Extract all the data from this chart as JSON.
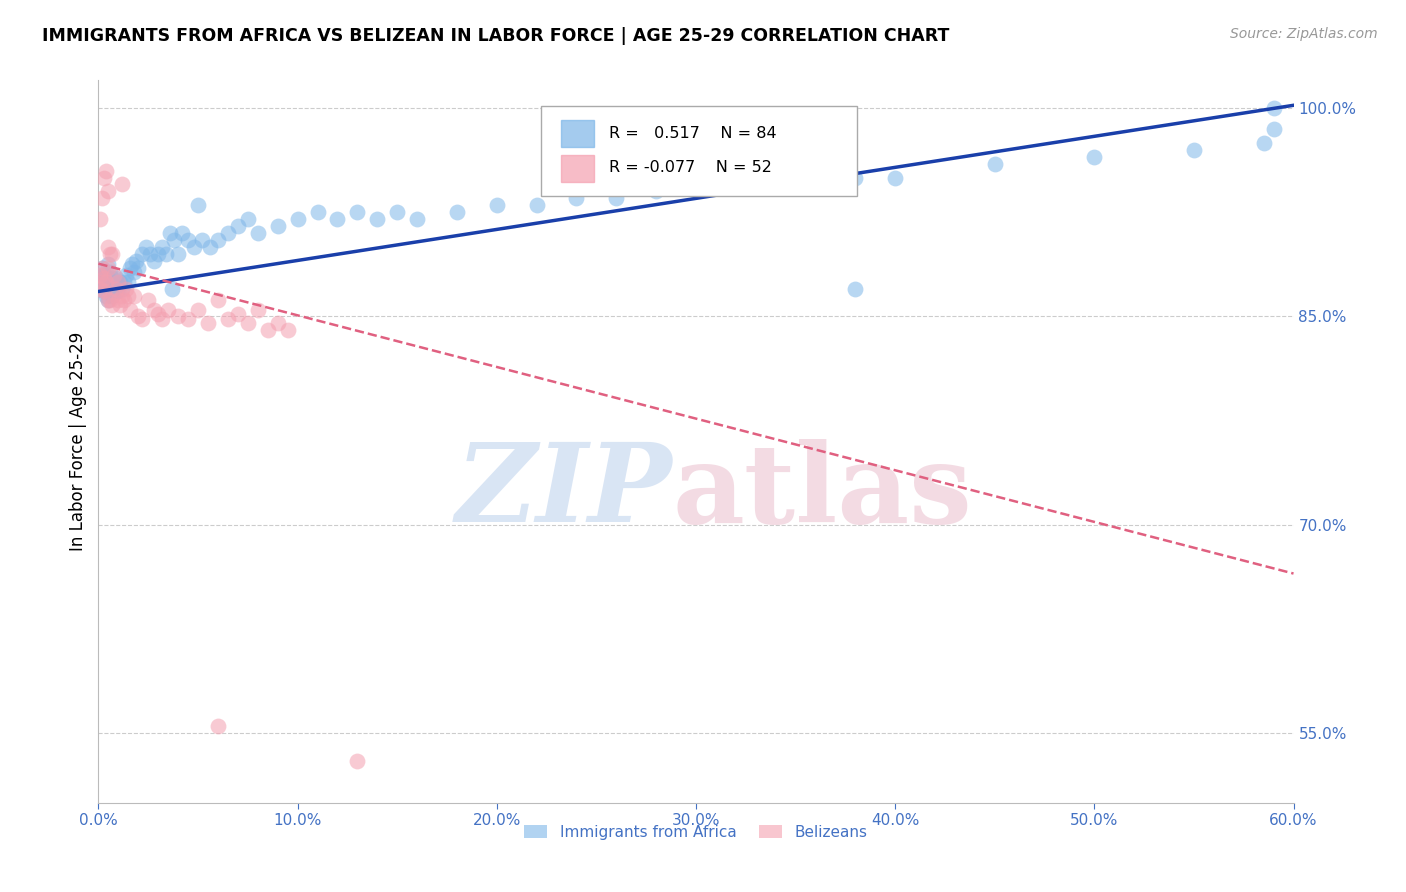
{
  "title": "IMMIGRANTS FROM AFRICA VS BELIZEAN IN LABOR FORCE | AGE 25-29 CORRELATION CHART",
  "source": "Source: ZipAtlas.com",
  "ylabel": "In Labor Force | Age 25-29",
  "xlim": [
    0.0,
    0.6
  ],
  "ylim": [
    0.5,
    1.02
  ],
  "xticks": [
    0.0,
    0.1,
    0.2,
    0.3,
    0.4,
    0.5,
    0.6
  ],
  "xticklabels": [
    "0.0%",
    "10.0%",
    "20.0%",
    "30.0%",
    "40.0%",
    "50.0%",
    "60.0%"
  ],
  "yticks_right": [
    0.55,
    0.7,
    0.85,
    1.0
  ],
  "ytick_labels_right": [
    "55.0%",
    "70.0%",
    "85.0%",
    "100.0%"
  ],
  "grid_color": "#cccccc",
  "axis_color": "#4472c4",
  "legend_R_blue": "0.517",
  "legend_N_blue": "84",
  "legend_R_pink": "-0.077",
  "legend_N_pink": "52",
  "blue_color": "#7EB6E8",
  "pink_color": "#F4A0B0",
  "trend_blue": "#1A3FAA",
  "trend_pink": "#E06080",
  "blue_trend_x": [
    0.0,
    0.6
  ],
  "blue_trend_y": [
    0.868,
    1.002
  ],
  "pink_trend_x": [
    0.0,
    0.6
  ],
  "pink_trend_y": [
    0.888,
    0.665
  ],
  "blue_x": [
    0.001,
    0.001,
    0.002,
    0.002,
    0.002,
    0.003,
    0.003,
    0.003,
    0.004,
    0.004,
    0.004,
    0.005,
    0.005,
    0.005,
    0.006,
    0.006,
    0.006,
    0.007,
    0.007,
    0.008,
    0.008,
    0.009,
    0.009,
    0.01,
    0.01,
    0.011,
    0.012,
    0.013,
    0.014,
    0.015,
    0.016,
    0.017,
    0.018,
    0.019,
    0.02,
    0.022,
    0.024,
    0.026,
    0.028,
    0.03,
    0.032,
    0.034,
    0.036,
    0.038,
    0.04,
    0.042,
    0.045,
    0.048,
    0.052,
    0.056,
    0.06,
    0.065,
    0.07,
    0.075,
    0.08,
    0.09,
    0.1,
    0.11,
    0.12,
    0.13,
    0.14,
    0.15,
    0.16,
    0.18,
    0.2,
    0.22,
    0.24,
    0.26,
    0.28,
    0.3,
    0.32,
    0.34,
    0.36,
    0.38,
    0.4,
    0.45,
    0.5,
    0.55,
    0.585,
    0.59,
    0.037,
    0.05,
    0.38,
    0.59
  ],
  "blue_y": [
    0.88,
    0.87,
    0.872,
    0.875,
    0.885,
    0.88,
    0.878,
    0.868,
    0.875,
    0.87,
    0.865,
    0.862,
    0.888,
    0.878,
    0.882,
    0.875,
    0.87,
    0.878,
    0.865,
    0.875,
    0.87,
    0.868,
    0.878,
    0.872,
    0.868,
    0.875,
    0.87,
    0.875,
    0.88,
    0.875,
    0.885,
    0.888,
    0.882,
    0.89,
    0.885,
    0.895,
    0.9,
    0.895,
    0.89,
    0.895,
    0.9,
    0.895,
    0.91,
    0.905,
    0.895,
    0.91,
    0.905,
    0.9,
    0.905,
    0.9,
    0.905,
    0.91,
    0.915,
    0.92,
    0.91,
    0.915,
    0.92,
    0.925,
    0.92,
    0.925,
    0.92,
    0.925,
    0.92,
    0.925,
    0.93,
    0.93,
    0.935,
    0.935,
    0.94,
    0.94,
    0.945,
    0.945,
    0.945,
    0.95,
    0.95,
    0.96,
    0.965,
    0.97,
    0.975,
    1.0,
    0.87,
    0.93,
    0.87,
    0.985
  ],
  "pink_x": [
    0.001,
    0.001,
    0.001,
    0.002,
    0.002,
    0.002,
    0.003,
    0.003,
    0.003,
    0.004,
    0.004,
    0.005,
    0.005,
    0.005,
    0.006,
    0.006,
    0.007,
    0.007,
    0.008,
    0.009,
    0.01,
    0.01,
    0.011,
    0.012,
    0.013,
    0.014,
    0.015,
    0.016,
    0.018,
    0.02,
    0.022,
    0.025,
    0.028,
    0.03,
    0.032,
    0.035,
    0.04,
    0.045,
    0.05,
    0.055,
    0.06,
    0.065,
    0.07,
    0.075,
    0.08,
    0.085,
    0.09,
    0.095,
    0.06,
    0.13,
    0.005,
    0.012
  ],
  "pink_y": [
    0.88,
    0.87,
    0.92,
    0.875,
    0.885,
    0.935,
    0.878,
    0.868,
    0.95,
    0.875,
    0.955,
    0.862,
    0.885,
    0.94,
    0.895,
    0.862,
    0.895,
    0.858,
    0.88,
    0.87,
    0.875,
    0.862,
    0.858,
    0.865,
    0.862,
    0.87,
    0.865,
    0.855,
    0.865,
    0.85,
    0.848,
    0.862,
    0.855,
    0.852,
    0.848,
    0.855,
    0.85,
    0.848,
    0.855,
    0.845,
    0.862,
    0.848,
    0.852,
    0.845,
    0.855,
    0.84,
    0.845,
    0.84,
    0.555,
    0.53,
    0.9,
    0.945
  ]
}
